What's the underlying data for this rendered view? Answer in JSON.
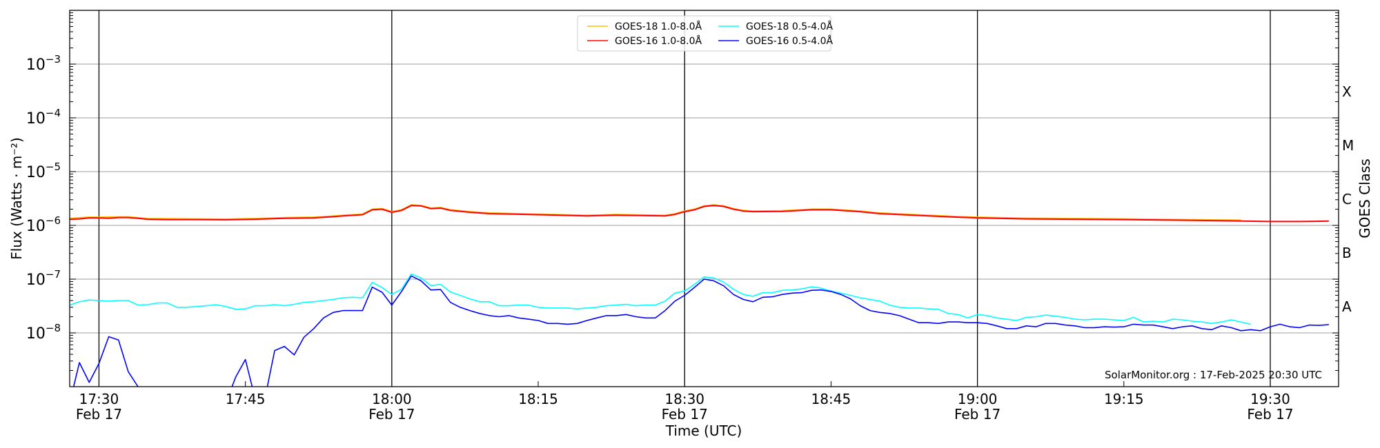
{
  "chart_data": {
    "type": "line",
    "title": "",
    "xlabel": "Time (UTC)",
    "ylabel": "Flux (Watts · m⁻²)",
    "right_label": "GOES Class",
    "yscale": "log",
    "ylim": [
      1e-09,
      0.01
    ],
    "xlim": [
      "17:27",
      "19:37"
    ],
    "grid": true,
    "legend_position": "top-center",
    "y_ticks": [
      {
        "value": 1e-08,
        "base": "10",
        "exp": "−8"
      },
      {
        "value": 1e-07,
        "base": "10",
        "exp": "−7"
      },
      {
        "value": 1e-06,
        "base": "10",
        "exp": "−6"
      },
      {
        "value": 1e-05,
        "base": "10",
        "exp": "−5"
      },
      {
        "value": 0.0001,
        "base": "10",
        "exp": "−4"
      },
      {
        "value": 0.001,
        "base": "10",
        "exp": "−3"
      }
    ],
    "x_ticks": [
      {
        "time": "17:30",
        "label": "17:30",
        "date": "Feb 17"
      },
      {
        "time": "17:45",
        "label": "17:45",
        "date": ""
      },
      {
        "time": "18:00",
        "label": "18:00",
        "date": "Feb 17"
      },
      {
        "time": "18:15",
        "label": "18:15",
        "date": ""
      },
      {
        "time": "18:30",
        "label": "18:30",
        "date": "Feb 17"
      },
      {
        "time": "18:45",
        "label": "18:45",
        "date": ""
      },
      {
        "time": "19:00",
        "label": "19:00",
        "date": "Feb 17"
      },
      {
        "time": "19:15",
        "label": "19:15",
        "date": ""
      },
      {
        "time": "19:30",
        "label": "19:30",
        "date": "Feb 17"
      }
    ],
    "class_labels": [
      {
        "label": "A",
        "range": [
          1e-08,
          1e-07
        ]
      },
      {
        "label": "B",
        "range": [
          1e-07,
          1e-06
        ]
      },
      {
        "label": "C",
        "range": [
          1e-06,
          1e-05
        ]
      },
      {
        "label": "M",
        "range": [
          1e-05,
          0.0001
        ]
      },
      {
        "label": "X",
        "range": [
          0.0001,
          0.001
        ]
      }
    ],
    "annotation": "SolarMonitor.org : 17-Feb-2025 20:30 UTC",
    "series": [
      {
        "name": "GOES-18 1.0-8.0Å",
        "color": "#ffc000",
        "x": [
          "17:27",
          "17:29",
          "17:30",
          "17:32",
          "17:33",
          "17:35",
          "17:40",
          "17:43",
          "17:46",
          "17:49",
          "17:52",
          "17:54",
          "17:55",
          "17:57",
          "17:58",
          "17:59",
          "18:00",
          "18:01",
          "18:02",
          "18:03",
          "18:04",
          "18:05",
          "18:06",
          "18:08",
          "18:10",
          "18:15",
          "18:20",
          "18:23",
          "18:28",
          "18:29",
          "18:30",
          "18:31",
          "18:32",
          "18:33",
          "18:34",
          "18:35",
          "18:36",
          "18:37",
          "18:40",
          "18:43",
          "18:45",
          "18:48",
          "18:50",
          "18:55",
          "18:58",
          "19:00",
          "19:05",
          "19:10",
          "19:15",
          "19:20",
          "19:27"
        ],
        "y": [
          1.35e-06,
          1.42e-06,
          1.42e-06,
          1.44e-06,
          1.44e-06,
          1.34e-06,
          1.32e-06,
          1.31e-06,
          1.34e-06,
          1.39e-06,
          1.42e-06,
          1.49e-06,
          1.54e-06,
          1.62e-06,
          2e-06,
          2.05e-06,
          1.8e-06,
          1.95e-06,
          2.4e-06,
          2.35e-06,
          2.1e-06,
          2.15e-06,
          1.95e-06,
          1.8e-06,
          1.7e-06,
          1.62e-06,
          1.54e-06,
          1.59e-06,
          1.54e-06,
          1.64e-06,
          1.85e-06,
          2e-06,
          2.3e-06,
          2.4e-06,
          2.3e-06,
          2.05e-06,
          1.9e-06,
          1.85e-06,
          1.87e-06,
          2e-06,
          2e-06,
          1.85e-06,
          1.7e-06,
          1.54e-06,
          1.46e-06,
          1.42e-06,
          1.36e-06,
          1.34e-06,
          1.32e-06,
          1.29e-06,
          1.25e-06
        ]
      },
      {
        "name": "GOES-16 1.0-8.0Å",
        "color": "#ff0000",
        "x": [
          "17:27",
          "17:28",
          "17:29",
          "17:30",
          "17:31",
          "17:32",
          "17:33",
          "17:34",
          "17:35",
          "17:37",
          "17:40",
          "17:43",
          "17:46",
          "17:49",
          "17:52",
          "17:54",
          "17:55",
          "17:57",
          "17:58",
          "17:59",
          "18:00",
          "18:01",
          "18:02",
          "18:03",
          "18:04",
          "18:05",
          "18:06",
          "18:08",
          "18:10",
          "18:15",
          "18:20",
          "18:23",
          "18:28",
          "18:29",
          "18:30",
          "18:31",
          "18:32",
          "18:33",
          "18:34",
          "18:35",
          "18:36",
          "18:37",
          "18:40",
          "18:43",
          "18:45",
          "18:48",
          "18:50",
          "18:55",
          "18:58",
          "19:00",
          "19:05",
          "19:10",
          "19:15",
          "19:20",
          "19:25",
          "19:30",
          "19:33",
          "19:36"
        ],
        "y": [
          1.3e-06,
          1.32e-06,
          1.38e-06,
          1.38e-06,
          1.36e-06,
          1.4e-06,
          1.4e-06,
          1.35e-06,
          1.3e-06,
          1.28e-06,
          1.28e-06,
          1.27e-06,
          1.3e-06,
          1.35e-06,
          1.38e-06,
          1.45e-06,
          1.5e-06,
          1.58e-06,
          1.95e-06,
          2e-06,
          1.75e-06,
          1.9e-06,
          2.35e-06,
          2.3e-06,
          2.05e-06,
          2.1e-06,
          1.9e-06,
          1.75e-06,
          1.65e-06,
          1.58e-06,
          1.5e-06,
          1.55e-06,
          1.5e-06,
          1.6e-06,
          1.8e-06,
          1.95e-06,
          2.25e-06,
          2.35e-06,
          2.25e-06,
          2e-06,
          1.85e-06,
          1.8e-06,
          1.82e-06,
          1.95e-06,
          1.95e-06,
          1.8e-06,
          1.65e-06,
          1.5e-06,
          1.42e-06,
          1.38e-06,
          1.32e-06,
          1.3e-06,
          1.28e-06,
          1.25e-06,
          1.22e-06,
          1.18e-06,
          1.18e-06,
          1.2e-06
        ]
      },
      {
        "name": "GOES-18 0.5-4.0Å",
        "color": "#00ffff",
        "start": "17:27",
        "step_min": 1,
        "y": [
          3.3e-08,
          3.8e-08,
          4.1e-08,
          4e-08,
          3.9e-08,
          4e-08,
          4e-08,
          3.3e-08,
          3.35e-08,
          3.6e-08,
          3.6e-08,
          3e-08,
          3e-08,
          3.1e-08,
          3.2e-08,
          3.35e-08,
          3.1e-08,
          2.75e-08,
          2.8e-08,
          3.2e-08,
          3.2e-08,
          3.35e-08,
          3.2e-08,
          3.4e-08,
          3.7e-08,
          3.8e-08,
          4e-08,
          4.2e-08,
          4.5e-08,
          4.6e-08,
          4.5e-08,
          8.7e-08,
          7e-08,
          5.2e-08,
          6.5e-08,
          1.25e-07,
          1.05e-07,
          7.6e-08,
          8e-08,
          5.8e-08,
          5e-08,
          4.3e-08,
          3.8e-08,
          3.8e-08,
          3.2e-08,
          3.2e-08,
          3.3e-08,
          3.3e-08,
          3e-08,
          2.9e-08,
          2.9e-08,
          2.9e-08,
          2.8e-08,
          2.9e-08,
          3e-08,
          3.2e-08,
          3.3e-08,
          3.4e-08,
          3.2e-08,
          3.3e-08,
          3.3e-08,
          3.9e-08,
          5.5e-08,
          6e-08,
          8e-08,
          1.1e-07,
          1.05e-07,
          8.8e-08,
          6.5e-08,
          5.2e-08,
          4.8e-08,
          5.6e-08,
          5.6e-08,
          6.2e-08,
          6.3e-08,
          6.6e-08,
          7.2e-08,
          6.8e-08,
          6e-08,
          5.5e-08,
          5e-08,
          4.5e-08,
          4.2e-08,
          3.9e-08,
          3.3e-08,
          3e-08,
          2.9e-08,
          2.9e-08,
          2.8e-08,
          2.75e-08,
          2.3e-08,
          2.2e-08,
          1.9e-08,
          2.2e-08,
          2.1e-08,
          1.9e-08,
          1.8e-08,
          1.7e-08,
          1.95e-08,
          2e-08,
          2.15e-08,
          2.05e-08,
          1.95e-08,
          1.8e-08,
          1.75e-08,
          1.8e-08,
          1.8e-08,
          1.75e-08,
          1.7e-08,
          1.95e-08,
          1.6e-08,
          1.65e-08,
          1.6e-08,
          1.8e-08,
          1.75e-08,
          1.65e-08,
          1.6e-08,
          1.5e-08,
          1.6e-08,
          1.75e-08,
          1.6e-08,
          1.45e-08
        ]
      },
      {
        "name": "GOES-16 0.5-4.0Å",
        "color": "#0000ff",
        "start": "17:27",
        "step_min": 1,
        "y": [
          5e-10,
          2.8e-09,
          1.2e-09,
          2.7e-09,
          8.5e-09,
          7.4e-09,
          1.9e-09,
          1e-09,
          5e-10,
          5e-10,
          5e-10,
          5e-10,
          5e-10,
          5e-10,
          5e-10,
          5e-10,
          5e-10,
          1.5e-09,
          3.2e-09,
          6e-10,
          6e-10,
          4.7e-09,
          5.6e-09,
          3.9e-09,
          8.3e-09,
          1.2e-08,
          1.9e-08,
          2.4e-08,
          2.6e-08,
          2.6e-08,
          2.6e-08,
          7.1e-08,
          5.7e-08,
          3.3e-08,
          5.9e-08,
          1.15e-07,
          9.3e-08,
          6.3e-08,
          6.4e-08,
          3.7e-08,
          3e-08,
          2.6e-08,
          2.3e-08,
          2.1e-08,
          2e-08,
          2.1e-08,
          1.9e-08,
          1.8e-08,
          1.7e-08,
          1.5e-08,
          1.5e-08,
          1.45e-08,
          1.5e-08,
          1.7e-08,
          1.9e-08,
          2.1e-08,
          2.1e-08,
          2.2e-08,
          2e-08,
          1.9e-08,
          1.9e-08,
          2.6e-08,
          3.9e-08,
          5e-08,
          7e-08,
          1e-07,
          9.3e-08,
          7.5e-08,
          5.2e-08,
          4.2e-08,
          3.8e-08,
          4.6e-08,
          4.7e-08,
          5.2e-08,
          5.5e-08,
          5.6e-08,
          6.2e-08,
          6.3e-08,
          5.9e-08,
          5.2e-08,
          4.3e-08,
          3.2e-08,
          2.6e-08,
          2.4e-08,
          2.3e-08,
          2.1e-08,
          1.8e-08,
          1.55e-08,
          1.55e-08,
          1.5e-08,
          1.6e-08,
          1.6e-08,
          1.55e-08,
          1.55e-08,
          1.5e-08,
          1.35e-08,
          1.2e-08,
          1.2e-08,
          1.35e-08,
          1.3e-08,
          1.5e-08,
          1.5e-08,
          1.4e-08,
          1.35e-08,
          1.25e-08,
          1.25e-08,
          1.3e-08,
          1.28e-08,
          1.3e-08,
          1.45e-08,
          1.4e-08,
          1.4e-08,
          1.3e-08,
          1.2e-08,
          1.3e-08,
          1.35e-08,
          1.2e-08,
          1.15e-08,
          1.35e-08,
          1.25e-08,
          1.1e-08,
          1.15e-08,
          1.1e-08,
          1.3e-08,
          1.45e-08,
          1.3e-08,
          1.25e-08,
          1.4e-08,
          1.38e-08,
          1.42e-08
        ]
      }
    ]
  }
}
